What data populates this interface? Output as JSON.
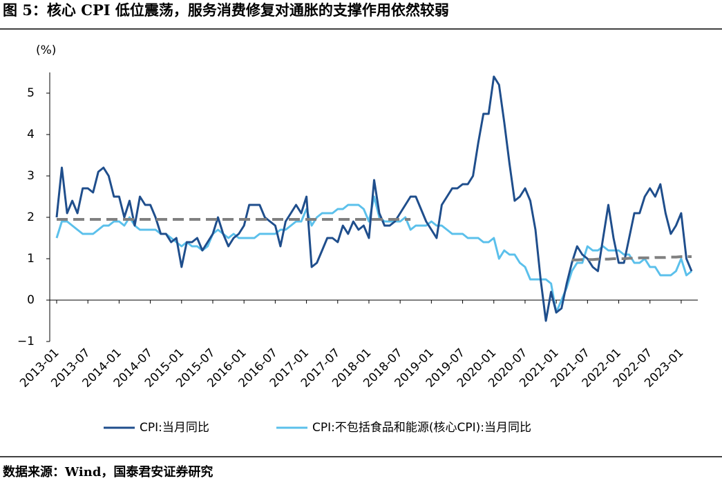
{
  "chart_data": {
    "type": "line",
    "title": "图 5：核心 CPI 低位震荡，服务消费修复对通胀的支撑作用依然较弱",
    "y_label": "(%)",
    "source": "数据来源：Wind，国泰君安证券研究",
    "categories": [
      "2013-01",
      null,
      null,
      null,
      null,
      null,
      "2013-07",
      null,
      null,
      null,
      null,
      null,
      "2014-01",
      null,
      null,
      null,
      null,
      null,
      "2014-07",
      null,
      null,
      null,
      null,
      null,
      "2015-01",
      null,
      null,
      null,
      null,
      null,
      "2015-07",
      null,
      null,
      null,
      null,
      null,
      "2016-01",
      null,
      null,
      null,
      null,
      null,
      "2016-07",
      null,
      null,
      null,
      null,
      null,
      "2017-01",
      null,
      null,
      null,
      null,
      null,
      "2017-07",
      null,
      null,
      null,
      null,
      null,
      "2018-01",
      null,
      null,
      null,
      null,
      null,
      "2018-07",
      null,
      null,
      null,
      null,
      null,
      "2019-01",
      null,
      null,
      null,
      null,
      null,
      "2019-07",
      null,
      null,
      null,
      null,
      null,
      "2020-01",
      null,
      null,
      null,
      null,
      null,
      "2020-07",
      null,
      null,
      null,
      null,
      null,
      "2021-01",
      null,
      null,
      null,
      null,
      null,
      "2021-07",
      null,
      null,
      null,
      null,
      null,
      "2022-01",
      null,
      null,
      null,
      null,
      null,
      "2022-07",
      null,
      null,
      null,
      null,
      null,
      "2023-01",
      null,
      null
    ],
    "series": [
      {
        "name": "CPI:当月同比",
        "color": "#1f4e8c",
        "values": [
          2.0,
          3.2,
          2.1,
          2.4,
          2.1,
          2.7,
          2.7,
          2.6,
          3.1,
          3.2,
          3.0,
          2.5,
          2.5,
          2.0,
          2.4,
          1.8,
          2.5,
          2.3,
          2.3,
          2.0,
          1.6,
          1.6,
          1.4,
          1.5,
          0.8,
          1.4,
          1.4,
          1.5,
          1.2,
          1.4,
          1.6,
          2.0,
          1.6,
          1.3,
          1.5,
          1.6,
          1.8,
          2.3,
          2.3,
          2.3,
          2.0,
          1.9,
          1.8,
          1.3,
          1.9,
          2.1,
          2.3,
          2.1,
          2.5,
          0.8,
          0.9,
          1.2,
          1.5,
          1.5,
          1.4,
          1.8,
          1.6,
          1.9,
          1.7,
          1.8,
          1.5,
          2.9,
          2.1,
          1.8,
          1.8,
          1.9,
          2.1,
          2.3,
          2.5,
          2.5,
          2.2,
          1.9,
          1.7,
          1.5,
          2.3,
          2.5,
          2.7,
          2.7,
          2.8,
          2.8,
          3.0,
          3.8,
          4.5,
          4.5,
          5.4,
          5.2,
          4.3,
          3.3,
          2.4,
          2.5,
          2.7,
          2.4,
          1.7,
          0.5,
          -0.5,
          0.2,
          -0.3,
          -0.2,
          0.4,
          0.9,
          1.3,
          1.1,
          1.0,
          0.8,
          0.7,
          1.5,
          2.3,
          1.5,
          0.9,
          0.9,
          1.5,
          2.1,
          2.1,
          2.5,
          2.7,
          2.5,
          2.8,
          2.1,
          1.6,
          1.8,
          2.1,
          1.0,
          0.7
        ]
      },
      {
        "name": "CPI:不包括食品和能源(核心CPI):当月同比",
        "color": "#5bc0eb",
        "values": [
          1.5,
          1.9,
          1.9,
          1.8,
          1.7,
          1.6,
          1.6,
          1.6,
          1.7,
          1.8,
          1.8,
          1.9,
          1.9,
          1.8,
          2.0,
          1.8,
          1.7,
          1.7,
          1.7,
          1.7,
          1.6,
          1.6,
          1.5,
          1.4,
          1.3,
          1.4,
          1.3,
          1.3,
          1.2,
          1.3,
          1.6,
          1.7,
          1.6,
          1.5,
          1.6,
          1.5,
          1.5,
          1.5,
          1.5,
          1.6,
          1.6,
          1.6,
          1.6,
          1.7,
          1.7,
          1.8,
          1.9,
          1.9,
          2.2,
          1.8,
          2.0,
          2.1,
          2.1,
          2.1,
          2.2,
          2.2,
          2.3,
          2.3,
          2.3,
          2.2,
          1.9,
          2.5,
          2.0,
          1.9,
          1.9,
          1.9,
          1.9,
          2.0,
          1.7,
          1.8,
          1.8,
          1.8,
          1.9,
          1.8,
          1.8,
          1.7,
          1.6,
          1.6,
          1.6,
          1.5,
          1.5,
          1.5,
          1.4,
          1.4,
          1.5,
          1.0,
          1.2,
          1.1,
          1.1,
          0.9,
          0.8,
          0.5,
          0.5,
          0.5,
          0.5,
          0.4,
          -0.3,
          0.0,
          0.3,
          0.7,
          0.9,
          0.9,
          1.3,
          1.2,
          1.2,
          1.3,
          1.2,
          1.2,
          1.2,
          1.1,
          1.1,
          0.9,
          0.9,
          1.0,
          0.8,
          0.8,
          0.6,
          0.6,
          0.6,
          0.7,
          1.0,
          0.6,
          0.7
        ]
      },
      {
        "color": "#808080",
        "dashed": true,
        "values": [
          1.95,
          1.95,
          1.95,
          1.95,
          1.95,
          1.95,
          1.95,
          1.95,
          1.95,
          1.95,
          1.95,
          1.95,
          1.95,
          1.95,
          1.95,
          1.95,
          1.95,
          1.95,
          1.95,
          1.95,
          1.95,
          1.95,
          1.95,
          1.95,
          1.95,
          1.95,
          1.95,
          1.95,
          1.95,
          1.95,
          1.95,
          1.95,
          1.95,
          1.95,
          1.95,
          1.95,
          1.95,
          1.95,
          1.95,
          1.95,
          1.95,
          1.95,
          1.95,
          1.95,
          1.95,
          1.95,
          1.95,
          1.95,
          1.95,
          1.95,
          1.95,
          1.95,
          1.95,
          1.95,
          1.95,
          1.95,
          1.95,
          1.95,
          1.95,
          1.95,
          1.95,
          1.95,
          1.95,
          1.95,
          1.95,
          1.95,
          1.95,
          1.95,
          1.95,
          null,
          null,
          null,
          null,
          null,
          null,
          null,
          null,
          null,
          null,
          null,
          null,
          null,
          null,
          null,
          null,
          null,
          null,
          null,
          null,
          null,
          null,
          null,
          null,
          null,
          null,
          null,
          null,
          null,
          null,
          0.97,
          0.97,
          0.98,
          0.98,
          0.98,
          0.99,
          0.99,
          0.99,
          1.0,
          1.0,
          1.0,
          1.01,
          1.01,
          1.02,
          1.02,
          1.02,
          1.03,
          1.03,
          1.03,
          1.04,
          1.04,
          1.05,
          1.05,
          1.05
        ]
      }
    ],
    "ylim": [
      -1,
      5.5
    ],
    "yticks": [
      {
        "value": -1,
        "label": "−1"
      },
      0,
      1,
      2,
      3,
      4,
      5
    ]
  }
}
